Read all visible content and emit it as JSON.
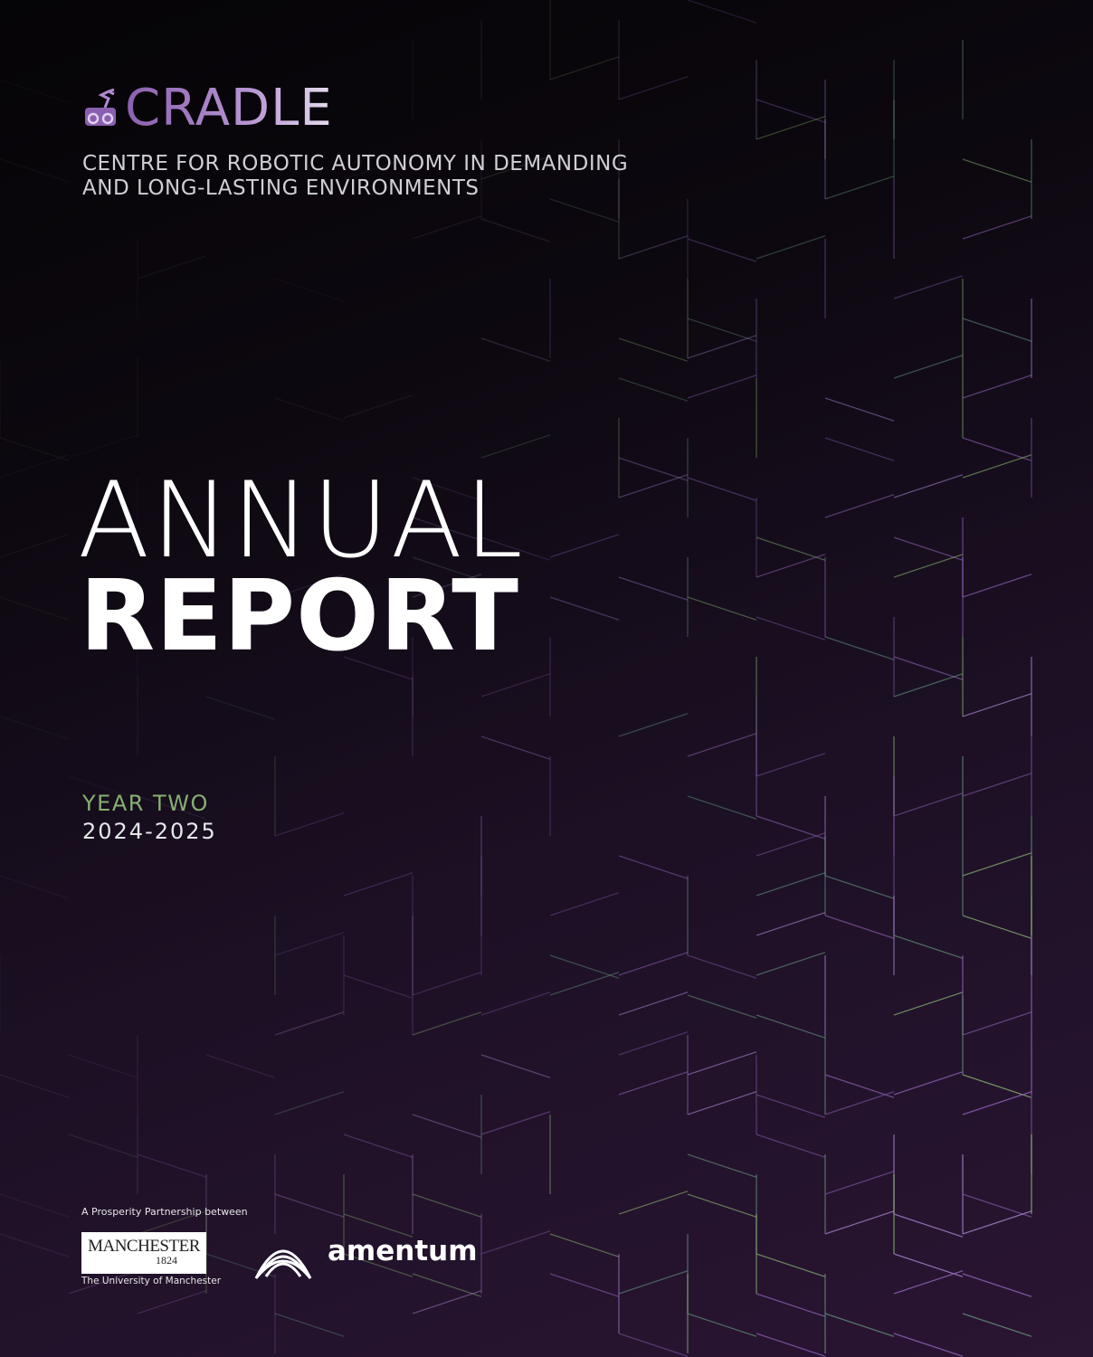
{
  "header": {
    "logo_text": "CRADLE",
    "subtitle_line1": "CENTRE FOR ROBOTIC AUTONOMY IN DEMANDING",
    "subtitle_line2": "AND LONG-LASTING ENVIRONMENTS"
  },
  "title": {
    "line1": "ANNUAL",
    "line2": "REPORT"
  },
  "edition": {
    "year_label": "YEAR TWO",
    "dates": "2024-2025"
  },
  "footer": {
    "partnership": "A Prosperity Partnership between",
    "manchester_name": "MANCHESTER",
    "manchester_year": "1824",
    "manchester_caption": "The University of Manchester",
    "amentum": "amentum"
  },
  "colors": {
    "accent_purple": "#a07cc4",
    "accent_green": "#86b070",
    "background": "#1c1024"
  }
}
